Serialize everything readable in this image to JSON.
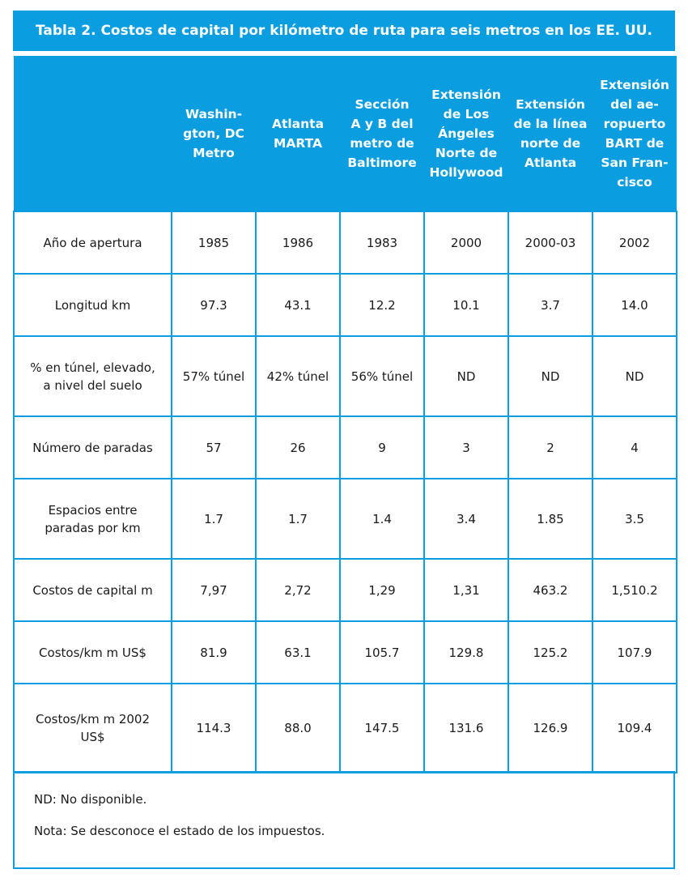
{
  "title": "Tabla 2. Costos de capital por kilómetro de ruta para seis metros en los EE. UU.",
  "columns": [
    "",
    "Washin-\ngton, DC\nMetro",
    "Atlanta\nMARTA",
    "Sección\nA y B del\nmetro de\nBaltimore",
    "Extensión\nde Los\nÁngeles\nNorte de\nHollywood",
    "Extensión\nde la línea\nnorte de\nAtlanta",
    "Extensión\ndel ae-\nropuerto\nBART de\nSan Fran-\ncisco"
  ],
  "rows": [
    {
      "label": "Año de apertura",
      "values": [
        "1985",
        "1986",
        "1983",
        "2000",
        "2000-03",
        "2002"
      ]
    },
    {
      "label": "Longitud km",
      "values": [
        "97.3",
        "43.1",
        "12.2",
        "10.1",
        "3.7",
        "14.0"
      ]
    },
    {
      "label": "% en túnel, elevado,\na nivel del suelo",
      "values": [
        "57% túnel",
        "42% túnel",
        "56% túnel",
        "ND",
        "ND",
        "ND"
      ]
    },
    {
      "label": "Número de paradas",
      "values": [
        "57",
        "26",
        "9",
        "3",
        "2",
        "4"
      ]
    },
    {
      "label": "Espacios entre\nparadas por km",
      "values": [
        "1.7",
        "1.7",
        "1.4",
        "3.4",
        "1.85",
        "3.5"
      ]
    },
    {
      "label": "Costos de capital m",
      "values": [
        "7,97",
        "2,72",
        "1,29",
        "1,31",
        "463.2",
        "1,510.2"
      ]
    },
    {
      "label": "Costos/km m US$",
      "values": [
        "81.9",
        "63.1",
        "105.7",
        "129.8",
        "125.2",
        "107.9"
      ]
    },
    {
      "label": "Costos/km m 2002\nUS$",
      "values": [
        "114.3",
        "88.0",
        "147.5",
        "131.6",
        "126.9",
        "109.4"
      ]
    }
  ],
  "notes": [
    "ND: No disponible.",
    "Nota: Se desconoce el estado de los impuestos."
  ]
}
